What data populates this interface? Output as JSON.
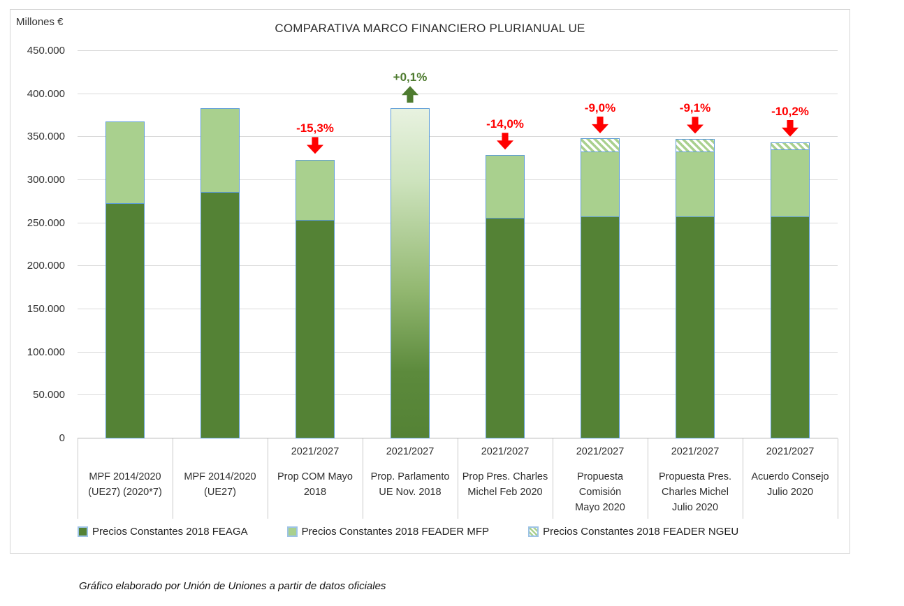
{
  "footer": {
    "credit": "Gráfico elaborado por Unión de Uniones a partir de datos oficiales"
  },
  "chart_data": {
    "type": "bar",
    "stacked": true,
    "title": "COMPARATIVA MARCO FINANCIERO PLURIANUAL UE",
    "ylabel": "Millones €",
    "units": "Millones €",
    "ylim": [
      0,
      450000
    ],
    "ytick_step": 50000,
    "ytick_labels": [
      "0",
      "50.000",
      "100.000",
      "150.000",
      "200.000",
      "250.000",
      "300.000",
      "350.000",
      "400.000",
      "450.000"
    ],
    "grid": true,
    "legend_position": "bottom",
    "categories": [
      {
        "period": "",
        "label": "MPF 2014/2020\n(UE27) (2020*7)"
      },
      {
        "period": "",
        "label": "MPF 2014/2020\n(UE27)"
      },
      {
        "period": "2021/2027",
        "label": "Prop COM Mayo\n2018"
      },
      {
        "period": "2021/2027",
        "label": "Prop. Parlamento\nUE Nov. 2018"
      },
      {
        "period": "2021/2027",
        "label": "Prop Pres. Charles\nMichel Feb 2020"
      },
      {
        "period": "2021/2027",
        "label": "Propuesta\nComisión\nMayo 2020"
      },
      {
        "period": "2021/2027",
        "label": "Propuesta Pres.\nCharles Michel\nJulio 2020"
      },
      {
        "period": "2021/2027",
        "label": "Acuerdo Consejo\nJulio 2020"
      }
    ],
    "series": [
      {
        "name": "Precios Constantes 2018 FEAGA",
        "key": "feaga",
        "style": "solid-dark-green",
        "values": [
          273000,
          286000,
          254000,
          null,
          256000,
          258000,
          258000,
          258000
        ]
      },
      {
        "name": "Precios Constantes 2018 FEADER MFP",
        "key": "feader_mfp",
        "style": "solid-light-green",
        "values": [
          95000,
          97000,
          70000,
          null,
          73000,
          75000,
          75000,
          78000
        ]
      },
      {
        "name": "Precios Constantes 2018 FEADER NGEU",
        "key": "feader_ngeu",
        "style": "diagonal-hatch",
        "values": [
          0,
          0,
          0,
          null,
          0,
          15000,
          14500,
          8000
        ]
      }
    ],
    "gradient_bar": {
      "category_index": 3,
      "total": 383300,
      "note": "single bar with light-to-dark green vertical gradient, no segment split"
    },
    "totals": [
      368000,
      383000,
      324000,
      383300,
      329000,
      348000,
      347500,
      344000
    ],
    "annotations": [
      {
        "category_index": 2,
        "text": "-15,3%",
        "direction": "down",
        "color": "#ff0000"
      },
      {
        "category_index": 3,
        "text": "+0,1%",
        "direction": "up",
        "color": "#4e7b2f"
      },
      {
        "category_index": 4,
        "text": "-14,0%",
        "direction": "down",
        "color": "#ff0000"
      },
      {
        "category_index": 5,
        "text": "-9,0%",
        "direction": "down",
        "color": "#ff0000"
      },
      {
        "category_index": 6,
        "text": "-9,1%",
        "direction": "down",
        "color": "#ff0000"
      },
      {
        "category_index": 7,
        "text": "-10,2%",
        "direction": "down",
        "color": "#ff0000"
      }
    ],
    "colors": {
      "feaga": "#548235",
      "feader_mfp": "#a9d08e",
      "ngeu_stripe_on_white": "#a9d08e",
      "bar_border": "#5b9bd5",
      "gridline": "#d9d9d9",
      "axis_line": "#b3b3b3",
      "annotation_red": "#ff0000",
      "annotation_green": "#4e7b2f",
      "legend_swatch_border": "#9dc3e6"
    }
  }
}
